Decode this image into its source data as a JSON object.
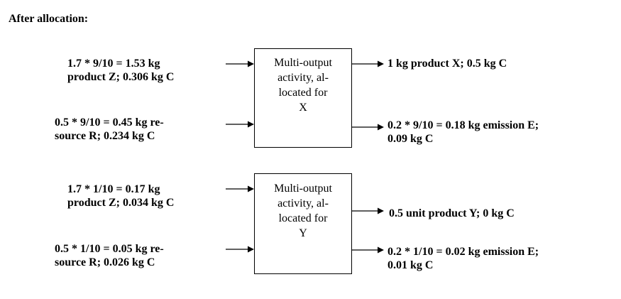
{
  "heading": "After allocation:",
  "blocks": [
    {
      "inputs": [
        {
          "line1": "1.7 * 9/10 = 1.53 kg",
          "line2": "product Z; 0.306 kg C"
        },
        {
          "line1": "0.5 * 9/10 = 0.45 kg re-",
          "line2": "source R; 0.234 kg C"
        }
      ],
      "box": {
        "lines": [
          "Multi-output",
          "activity, al-",
          "located for",
          "X"
        ]
      },
      "outputs": [
        {
          "line1": "1 kg product X; 0.5 kg C",
          "line2": ""
        },
        {
          "line1": "0.2 * 9/10 = 0.18 kg emission E;",
          "line2": "0.09 kg C"
        }
      ]
    },
    {
      "inputs": [
        {
          "line1": "1.7 * 1/10 = 0.17 kg",
          "line2": "product Z; 0.034 kg C"
        },
        {
          "line1": "0.5 * 1/10 = 0.05 kg re-",
          "line2": "source R; 0.026 kg C"
        }
      ],
      "box": {
        "lines": [
          "Multi-output",
          "activity, al-",
          "located for",
          "Y"
        ]
      },
      "outputs": [
        {
          "line1": "0.5 unit product Y; 0 kg C",
          "line2": ""
        },
        {
          "line1": "0.2 * 1/10 = 0.02 kg emission E;",
          "line2": "0.01 kg C"
        }
      ]
    }
  ]
}
